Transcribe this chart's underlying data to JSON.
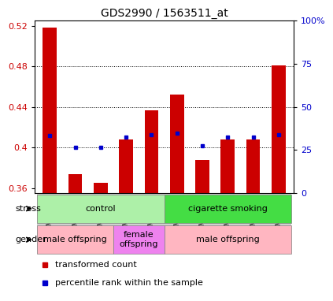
{
  "title": "GDS2990 / 1563511_at",
  "samples": [
    "GSM180067",
    "GSM180439",
    "GSM180443",
    "GSM180432",
    "GSM180446",
    "GSM180078",
    "GSM180445",
    "GSM180447",
    "GSM180448",
    "GSM180449"
  ],
  "red_values": [
    0.518,
    0.374,
    0.365,
    0.408,
    0.437,
    0.452,
    0.388,
    0.408,
    0.408,
    0.481
  ],
  "blue_values": [
    0.412,
    0.4,
    0.4,
    0.41,
    0.413,
    0.414,
    0.402,
    0.41,
    0.41,
    0.413
  ],
  "y_min": 0.355,
  "y_max": 0.525,
  "y_ticks": [
    0.36,
    0.4,
    0.44,
    0.48,
    0.52
  ],
  "y_tick_labels": [
    "0.36",
    "0.4",
    "0.44",
    "0.48",
    "0.52"
  ],
  "right_y_ticks_pct": [
    0,
    25,
    50,
    75,
    100
  ],
  "right_y_labels": [
    "0",
    "25",
    "50",
    "75",
    "100%"
  ],
  "grid_lines_at": [
    0.4,
    0.44,
    0.48
  ],
  "stress_groups": [
    {
      "label": "control",
      "start": 0,
      "end": 5,
      "color": "#adf0a8"
    },
    {
      "label": "cigarette smoking",
      "start": 5,
      "end": 10,
      "color": "#44dd44"
    }
  ],
  "gender_groups": [
    {
      "label": "male offspring",
      "start": 0,
      "end": 3,
      "color": "#ffb6c1"
    },
    {
      "label": "female\noffspring",
      "start": 3,
      "end": 5,
      "color": "#ee82ee"
    },
    {
      "label": "male offspring",
      "start": 5,
      "end": 10,
      "color": "#ffb6c1"
    }
  ],
  "bar_color": "#CC0000",
  "dot_color": "#0000CC",
  "background_color": "#ffffff",
  "xtick_bg": "#d0d0d0",
  "legend_red": "transformed count",
  "legend_blue": "percentile rank within the sample",
  "bar_width": 0.55
}
